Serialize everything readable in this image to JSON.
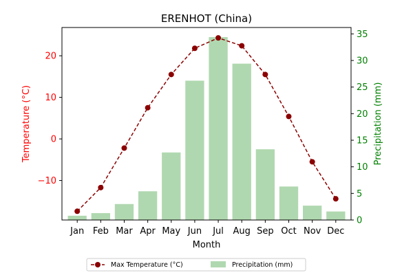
{
  "chart_data": {
    "type": "bar+line",
    "title": "ERENHOT (China)",
    "xlabel": "Month",
    "categories": [
      "Jan",
      "Feb",
      "Mar",
      "Apr",
      "May",
      "Jun",
      "Jul",
      "Aug",
      "Sep",
      "Oct",
      "Nov",
      "Dec"
    ],
    "left_axis": {
      "label": "Temperature (°C)",
      "color": "#ff0000",
      "ylim": [
        -19.5,
        26.8
      ],
      "ticks": [
        -10,
        0,
        10,
        20
      ]
    },
    "right_axis": {
      "label": "Precipitation (mm)",
      "color": "#008000",
      "ylim": [
        0,
        36.2
      ],
      "ticks": [
        0,
        5,
        10,
        15,
        20,
        25,
        30,
        35
      ]
    },
    "series": [
      {
        "name": "Max Temperature (°C)",
        "type": "line",
        "axis": "left",
        "color": "#8b0000",
        "style": "dashed",
        "marker": "circle",
        "values": [
          -17.4,
          -11.7,
          -2.2,
          7.5,
          15.5,
          21.8,
          24.3,
          22.4,
          15.5,
          5.4,
          -5.5,
          -14.4
        ]
      },
      {
        "name": "Precipitation (mm)",
        "type": "bar",
        "axis": "right",
        "color": "#b0d8b0",
        "values": [
          0.8,
          1.3,
          3.0,
          5.4,
          12.7,
          26.2,
          34.4,
          29.4,
          13.3,
          6.3,
          2.7,
          1.6
        ]
      }
    ],
    "legend_position": "bottom-center",
    "grid": false
  }
}
